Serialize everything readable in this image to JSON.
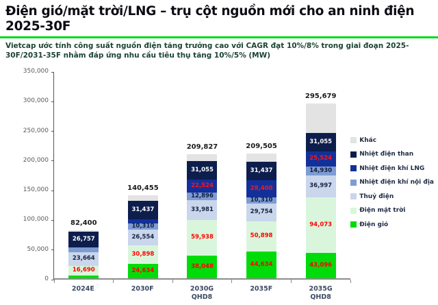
{
  "header": {
    "title": "Điện gió/mặt trời/LNG – trụ cột nguồn mới cho an ninh điện 2025-30F",
    "subtitle": "Vietcap ước tính công suất nguồn điện tăng trưởng cao với CAGR đạt 10%/8% trong giai đoạn 2025-30F/2031-35F nhằm đáp ứng nhu cầu tiêu thụ tăng 10%/5% (MW)",
    "accent_green": "#00db16",
    "title_color": "#0b0b14",
    "subtitle_color": "#1b4332"
  },
  "chart_data": {
    "type": "bar",
    "stacked": true,
    "unit": "MW",
    "grid": false,
    "legend_position": "right",
    "ylim": [
      0,
      350000
    ],
    "y_ticks": [
      0,
      50000,
      100000,
      150000,
      200000,
      250000,
      300000,
      350000
    ],
    "y_tick_labels": [
      "0",
      "50,000",
      "100,000",
      "150,000",
      "200,000",
      "250,000",
      "300,000",
      "350,000"
    ],
    "categories": [
      "2024E",
      "2030F",
      "2030G QHD8",
      "2035F",
      "2035G QHD8"
    ],
    "category_label_lines": [
      [
        "2024E"
      ],
      [
        "2030F"
      ],
      [
        "2030G",
        "QHD8"
      ],
      [
        "2035F"
      ],
      [
        "2035G",
        "QHD8"
      ]
    ],
    "totals": [
      82400,
      140455,
      209827,
      209505,
      295679
    ],
    "total_labels": [
      "82,400",
      "140,455",
      "209,827",
      "209,505",
      "295,679"
    ],
    "unlabeled_segment_values_estimated_from_pixels": true,
    "series": [
      {
        "name": "Điện gió",
        "color": "#00dc0a",
        "label_color": "#fe0000",
        "values": [
          5000,
          24634,
          38048,
          44634,
          43096
        ],
        "labels": [
          null,
          "24,634",
          "38,048",
          "44,634",
          "43,096"
        ]
      },
      {
        "name": "Điện mặt trời",
        "color": "#d9f6dc",
        "label_color": "#fe0000",
        "values": [
          16690,
          30898,
          59938,
          50898,
          94073
        ],
        "labels": [
          "16,690",
          "30,898",
          "59,938",
          "50,898",
          "94,073"
        ]
      },
      {
        "name": "Thuỷ điện",
        "color": "#c9d6ec",
        "label_color": "#16233f",
        "values": [
          23664,
          26554,
          33981,
          29754,
          36997
        ],
        "labels": [
          "23,664",
          "26,554",
          "33,981",
          "29,754",
          "36,997"
        ]
      },
      {
        "name": "Nhiệt điện khí nội địa",
        "color": "#7e9bd3",
        "label_color": "#101c38",
        "values": [
          7900,
          10310,
          12896,
          10310,
          14930
        ],
        "labels": [
          null,
          "10,310",
          "12,896",
          "10,310",
          "14,930"
        ]
      },
      {
        "name": "Nhiệt điện khí LNG",
        "color": "#13309a",
        "label_color": "#fe1515",
        "values": [
          0,
          7500,
          22524,
          28400,
          25524
        ],
        "labels": [
          null,
          null,
          "22,524",
          "28,400",
          "25,524"
        ]
      },
      {
        "name": "Nhiệt điện than",
        "color": "#0d1e4d",
        "label_color": "#ffffff",
        "values": [
          26757,
          31437,
          31055,
          31437,
          31055
        ],
        "labels": [
          "26,757",
          "31,437",
          "31,055",
          "31,437",
          "31,055"
        ]
      },
      {
        "name": "Khác",
        "color": "#e3e3e4",
        "label_color": "#333333",
        "values": [
          2389,
          9122,
          11385,
          14072,
          50004
        ],
        "labels": [
          null,
          null,
          null,
          null,
          null
        ]
      }
    ],
    "legend_order_top_to_bottom": [
      "Khác",
      "Nhiệt điện than",
      "Nhiệt điện khí LNG",
      "Nhiệt điện khí nội địa",
      "Thuỷ điện",
      "Điện mặt trời",
      "Điện gió"
    ]
  }
}
